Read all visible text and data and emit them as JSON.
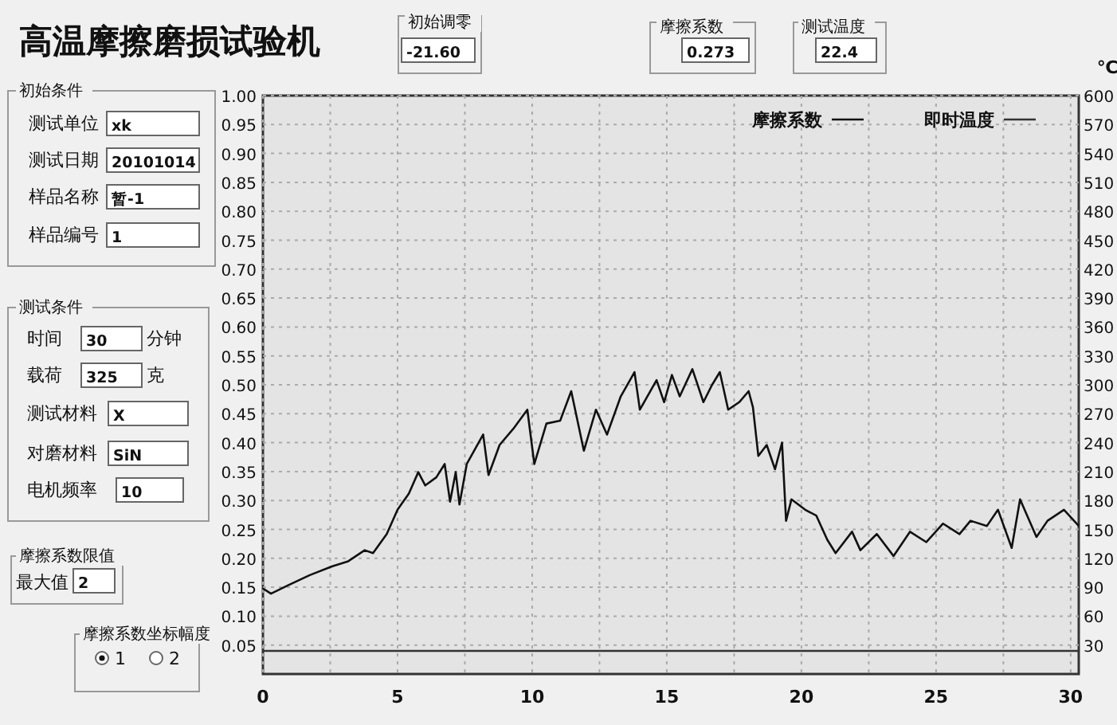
{
  "chart_data": [
    {
      "type": "other",
      "title": "高温摩擦磨损试验机",
      "annotations": [
        "初始调零",
        "-21.60",
        "摩擦系数",
        "0.273",
        "测试温度",
        "22.4",
        "初始条件",
        "测试单位",
        "xk",
        "测试日期",
        "20101014",
        "样品名称",
        "暂-1",
        "样品编号",
        "1",
        "测试条件",
        "时间",
        "30",
        "分钟",
        "载荷",
        "325",
        "克",
        "测试材料",
        "X",
        "对磨材料",
        "SiN",
        "电机频率",
        "10",
        "摩擦系数限值",
        "最大值",
        "2",
        "摩擦系数坐标幅度",
        "1",
        "2"
      ]
    },
    {
      "type": "line",
      "xlim": [
        0,
        30.3
      ],
      "ylim": [
        0,
        1
      ],
      "y2lim": [
        0,
        600
      ],
      "y2label": "℃",
      "grid": true,
      "legend": "top right",
      "xticks": [
        0,
        {
          "value": 2.5,
          "label": null
        },
        5,
        {
          "value": 7.5,
          "label": null
        },
        10,
        {
          "value": 12.5,
          "label": null
        },
        15,
        {
          "value": 17.5,
          "label": null
        },
        20,
        {
          "value": 22.5,
          "label": null
        },
        25,
        {
          "value": 27.5,
          "label": null
        },
        30
      ],
      "yticks": [
        {
          "value": 0.05,
          "label": "0.05"
        },
        {
          "value": 0.1,
          "label": "0.10"
        },
        {
          "value": 0.15,
          "label": "0.15"
        },
        {
          "value": 0.2,
          "label": "0.20"
        },
        {
          "value": 0.25,
          "label": "0.25"
        },
        {
          "value": 0.3,
          "label": "0.30"
        },
        {
          "value": 0.35,
          "label": "0.35"
        },
        {
          "value": 0.4,
          "label": "0.40"
        },
        {
          "value": 0.45,
          "label": "0.45"
        },
        {
          "value": 0.5,
          "label": "0.50"
        },
        {
          "value": 0.55,
          "label": "0.55"
        },
        {
          "value": 0.6,
          "label": "0.60"
        },
        {
          "value": 0.65,
          "label": "0.65"
        },
        {
          "value": 0.7,
          "label": "0.70"
        },
        {
          "value": 0.75,
          "label": "0.75"
        },
        {
          "value": 0.8,
          "label": "0.80"
        },
        {
          "value": 0.85,
          "label": "0.85"
        },
        {
          "value": 0.9,
          "label": "0.90"
        },
        {
          "value": 0.95,
          "label": "0.95"
        },
        {
          "value": 1.0,
          "label": "1.00"
        }
      ],
      "y2ticks": [
        30,
        60,
        90,
        120,
        150,
        180,
        210,
        240,
        270,
        300,
        330,
        360,
        390,
        420,
        450,
        480,
        510,
        540,
        570,
        600
      ],
      "series": [
        {
          "name": "摩擦系数",
          "color": "#111111",
          "axis": "y",
          "x": [
            0,
            0.3,
            0.92,
            1.74,
            2.56,
            3.17,
            3.78,
            4.09,
            4.6,
            5.0,
            5.42,
            5.77,
            6.03,
            6.44,
            6.75,
            6.95,
            7.16,
            7.3,
            7.57,
            8.18,
            8.38,
            8.79,
            9.3,
            9.82,
            10.08,
            10.53,
            11.04,
            11.45,
            11.92,
            12.37,
            12.78,
            13.29,
            13.8,
            14.0,
            14.62,
            14.9,
            15.19,
            15.48,
            15.95,
            16.36,
            16.67,
            16.97,
            17.28,
            17.69,
            18.04,
            18.2,
            18.4,
            18.71,
            19.02,
            19.28,
            19.43,
            19.63,
            20.14,
            20.55,
            20.96,
            21.27,
            21.88,
            22.19,
            22.8,
            23.42,
            24.03,
            24.64,
            25.26,
            25.87,
            26.28,
            26.89,
            27.3,
            27.81,
            28.12,
            28.73,
            29.14,
            29.75,
            30.3
          ],
          "values": [
            0.148,
            0.139,
            0.153,
            0.171,
            0.186,
            0.195,
            0.214,
            0.209,
            0.242,
            0.284,
            0.312,
            0.349,
            0.326,
            0.34,
            0.363,
            0.298,
            0.349,
            0.293,
            0.363,
            0.414,
            0.344,
            0.396,
            0.424,
            0.457,
            0.363,
            0.433,
            0.438,
            0.489,
            0.386,
            0.457,
            0.414,
            0.48,
            0.522,
            0.457,
            0.508,
            0.47,
            0.517,
            0.48,
            0.527,
            0.47,
            0.499,
            0.522,
            0.457,
            0.47,
            0.489,
            0.461,
            0.377,
            0.396,
            0.354,
            0.4,
            0.265,
            0.302,
            0.284,
            0.274,
            0.232,
            0.209,
            0.246,
            0.214,
            0.242,
            0.204,
            0.246,
            0.228,
            0.26,
            0.242,
            0.265,
            0.256,
            0.284,
            0.218,
            0.302,
            0.237,
            0.265,
            0.284,
            0.256
          ]
        },
        {
          "name": "即时温度",
          "color": "#333333",
          "axis": "y2",
          "x": [
            0,
            10,
            15,
            20,
            30.3
          ],
          "values": [
            24,
            24,
            24,
            24,
            24
          ]
        }
      ]
    }
  ]
}
